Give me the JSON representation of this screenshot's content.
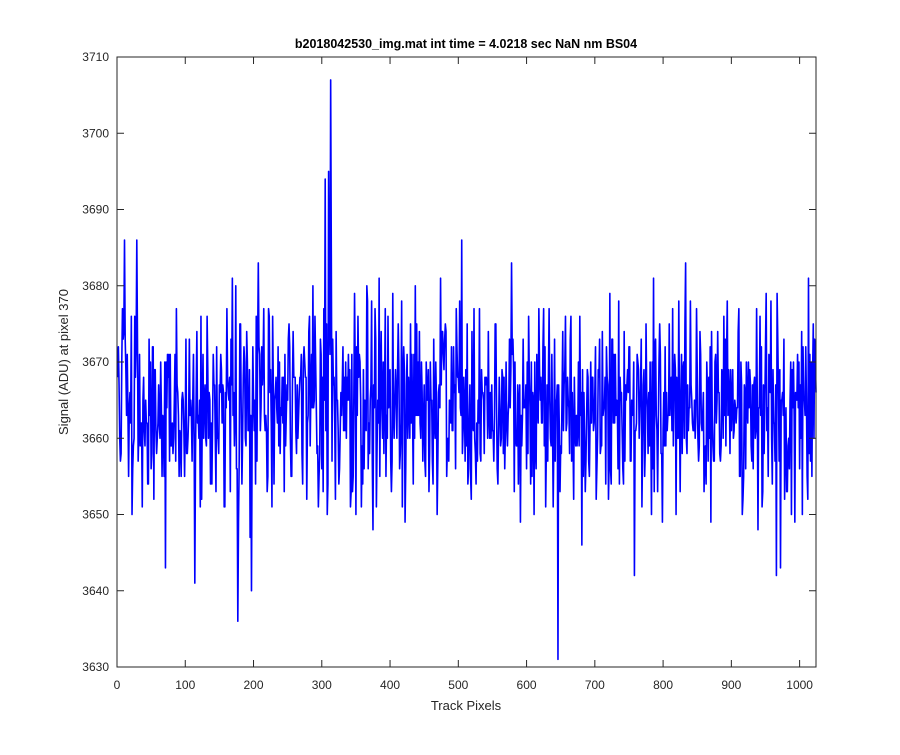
{
  "chart_data": {
    "type": "line",
    "title": "b2018042530_img.mat int time = 4.0218 sec  NaN nm BS04",
    "xlabel": "Track Pixels",
    "ylabel": "Signal (ADU) at pixel 370",
    "xlim": [
      0,
      1024
    ],
    "ylim": [
      3630,
      3710
    ],
    "xticks": [
      0,
      100,
      200,
      300,
      400,
      500,
      600,
      700,
      800,
      900,
      1000
    ],
    "yticks": [
      3630,
      3640,
      3650,
      3660,
      3670,
      3680,
      3690,
      3700,
      3710
    ],
    "xtick_labels": [
      "0",
      "100",
      "200",
      "300",
      "400",
      "500",
      "600",
      "700",
      "800",
      "900",
      "1000"
    ],
    "ytick_labels": [
      "3630",
      "3640",
      "3650",
      "3660",
      "3670",
      "3680",
      "3690",
      "3700",
      "3710"
    ],
    "grid": false,
    "series": [
      {
        "color": "#0000ff",
        "n_points": 1024,
        "baseline": 3664,
        "noise_amplitude": 7,
        "features": [
          {
            "x": 10,
            "y": 3686
          },
          {
            "x": 28,
            "y": 3686
          },
          {
            "x": 304,
            "y": 3694
          },
          {
            "x": 309,
            "y": 3695
          },
          {
            "x": 312,
            "y": 3707
          },
          {
            "x": 176,
            "y": 3636
          },
          {
            "x": 196,
            "y": 3640
          },
          {
            "x": 113,
            "y": 3641
          },
          {
            "x": 70,
            "y": 3643
          },
          {
            "x": 645,
            "y": 3631
          },
          {
            "x": 757,
            "y": 3642
          },
          {
            "x": 965,
            "y": 3642
          },
          {
            "x": 971,
            "y": 3643
          },
          {
            "x": 504,
            "y": 3686
          },
          {
            "x": 577,
            "y": 3683
          },
          {
            "x": 206,
            "y": 3683
          },
          {
            "x": 832,
            "y": 3683
          },
          {
            "x": 1022,
            "y": 3670
          }
        ]
      }
    ]
  }
}
